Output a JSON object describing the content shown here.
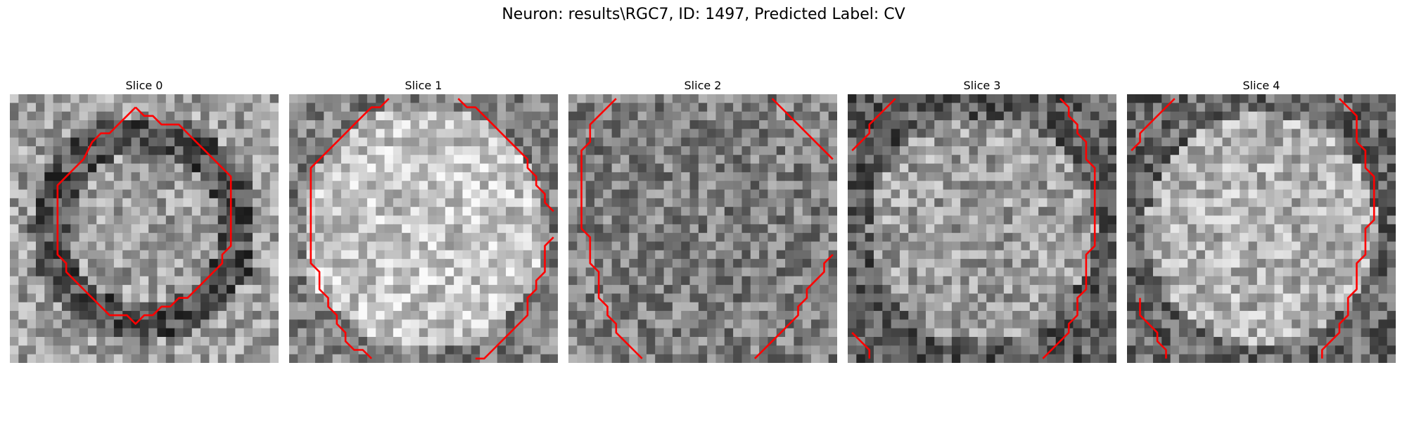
{
  "figure": {
    "title": "Neuron: results\\RGC7, ID: 1497, Predicted Label: CV"
  },
  "slices": [
    {
      "label": "Slice 0",
      "seed": 11,
      "profile": "ring",
      "contour": [
        [
          14,
          1
        ],
        [
          15,
          2
        ],
        [
          16,
          2
        ],
        [
          17,
          3
        ],
        [
          18,
          3
        ],
        [
          19,
          3
        ],
        [
          20,
          4
        ],
        [
          21,
          5
        ],
        [
          22,
          6
        ],
        [
          23,
          7
        ],
        [
          24,
          8
        ],
        [
          25,
          9
        ],
        [
          25,
          10
        ],
        [
          25,
          11
        ],
        [
          25,
          12
        ],
        [
          25,
          13
        ],
        [
          25,
          14
        ],
        [
          25,
          15
        ],
        [
          25,
          16
        ],
        [
          25,
          17
        ],
        [
          24,
          18
        ],
        [
          24,
          19
        ],
        [
          23,
          20
        ],
        [
          22,
          21
        ],
        [
          21,
          22
        ],
        [
          20,
          23
        ],
        [
          19,
          23
        ],
        [
          18,
          24
        ],
        [
          17,
          24
        ],
        [
          16,
          25
        ],
        [
          15,
          25
        ],
        [
          14,
          26
        ],
        [
          13,
          25
        ],
        [
          12,
          25
        ],
        [
          11,
          25
        ],
        [
          10,
          24
        ],
        [
          9,
          23
        ],
        [
          8,
          22
        ],
        [
          7,
          21
        ],
        [
          6,
          20
        ],
        [
          6,
          19
        ],
        [
          5,
          18
        ],
        [
          5,
          17
        ],
        [
          5,
          16
        ],
        [
          5,
          15
        ],
        [
          5,
          14
        ],
        [
          5,
          13
        ],
        [
          5,
          12
        ],
        [
          5,
          11
        ],
        [
          5,
          10
        ],
        [
          6,
          9
        ],
        [
          7,
          8
        ],
        [
          8,
          7
        ],
        [
          9,
          5
        ],
        [
          10,
          4
        ],
        [
          11,
          4
        ],
        [
          12,
          3
        ],
        [
          13,
          2
        ],
        [
          14,
          1
        ]
      ]
    },
    {
      "label": "Slice 1",
      "seed": 23,
      "profile": "bright",
      "contour": [
        [
          11,
          0
        ],
        [
          10,
          1
        ],
        [
          9,
          1
        ],
        [
          8,
          2
        ],
        [
          7,
          3
        ],
        [
          6,
          4
        ],
        [
          5,
          5
        ],
        [
          4,
          6
        ],
        [
          3,
          7
        ],
        [
          2,
          8
        ],
        [
          2,
          9
        ],
        [
          2,
          10
        ],
        [
          2,
          11
        ],
        [
          2,
          12
        ],
        [
          2,
          13
        ],
        [
          2,
          14
        ],
        [
          2,
          15
        ],
        [
          2,
          16
        ],
        [
          2,
          17
        ],
        [
          2,
          18
        ],
        [
          2,
          19
        ],
        [
          3,
          20
        ],
        [
          3,
          21
        ],
        [
          3,
          22
        ],
        [
          4,
          23
        ],
        [
          4,
          24
        ],
        [
          5,
          25
        ],
        [
          5,
          26
        ],
        [
          6,
          27
        ],
        [
          6,
          28
        ],
        [
          7,
          29
        ],
        [
          8,
          29
        ],
        [
          9,
          30
        ]
      ],
      "contour2": [
        [
          19,
          0
        ],
        [
          20,
          1
        ],
        [
          21,
          1
        ],
        [
          22,
          2
        ],
        [
          23,
          3
        ],
        [
          24,
          4
        ],
        [
          25,
          5
        ],
        [
          26,
          6
        ],
        [
          27,
          7
        ],
        [
          27,
          8
        ],
        [
          28,
          9
        ],
        [
          28,
          10
        ],
        [
          29,
          11
        ],
        [
          29,
          12
        ],
        [
          30,
          13
        ]
      ],
      "contour3": [
        [
          30,
          16
        ],
        [
          29,
          17
        ],
        [
          29,
          18
        ],
        [
          29,
          19
        ],
        [
          29,
          20
        ],
        [
          28,
          21
        ],
        [
          28,
          22
        ],
        [
          27,
          23
        ],
        [
          27,
          24
        ],
        [
          27,
          25
        ],
        [
          26,
          26
        ],
        [
          25,
          27
        ],
        [
          24,
          28
        ],
        [
          23,
          29
        ],
        [
          22,
          30
        ],
        [
          21,
          30
        ]
      ]
    },
    {
      "label": "Slice 2",
      "seed": 37,
      "profile": "noise",
      "contour": [
        [
          5,
          0
        ],
        [
          4,
          1
        ],
        [
          3,
          2
        ],
        [
          2,
          3
        ],
        [
          2,
          4
        ],
        [
          2,
          5
        ],
        [
          1,
          6
        ],
        [
          1,
          7
        ],
        [
          1,
          8
        ],
        [
          1,
          9
        ],
        [
          1,
          10
        ],
        [
          1,
          11
        ],
        [
          1,
          12
        ],
        [
          1,
          13
        ],
        [
          1,
          14
        ],
        [
          1,
          15
        ],
        [
          2,
          16
        ],
        [
          2,
          17
        ],
        [
          2,
          18
        ],
        [
          2,
          19
        ],
        [
          3,
          20
        ],
        [
          3,
          21
        ],
        [
          3,
          22
        ],
        [
          3,
          23
        ],
        [
          4,
          24
        ],
        [
          4,
          25
        ],
        [
          5,
          26
        ],
        [
          5,
          27
        ],
        [
          6,
          28
        ],
        [
          7,
          29
        ],
        [
          8,
          30
        ]
      ],
      "contour2": [
        [
          23,
          0
        ],
        [
          24,
          1
        ],
        [
          25,
          2
        ],
        [
          26,
          3
        ],
        [
          27,
          4
        ],
        [
          28,
          5
        ],
        [
          29,
          6
        ],
        [
          30,
          7
        ]
      ],
      "contour3": [
        [
          30,
          18
        ],
        [
          29,
          19
        ],
        [
          29,
          20
        ],
        [
          28,
          21
        ],
        [
          27,
          22
        ],
        [
          27,
          23
        ],
        [
          26,
          24
        ],
        [
          26,
          25
        ],
        [
          25,
          26
        ],
        [
          24,
          27
        ],
        [
          23,
          28
        ],
        [
          22,
          29
        ],
        [
          21,
          30
        ]
      ]
    },
    {
      "label": "Slice 3",
      "seed": 53,
      "profile": "rim-dark",
      "contour": [
        [
          5,
          0
        ],
        [
          4,
          1
        ],
        [
          3,
          2
        ],
        [
          2,
          3
        ],
        [
          2,
          4
        ],
        [
          1,
          5
        ],
        [
          0,
          6
        ]
      ],
      "contour2": [
        [
          24,
          0
        ],
        [
          25,
          1
        ],
        [
          25,
          2
        ],
        [
          26,
          3
        ],
        [
          26,
          4
        ],
        [
          27,
          5
        ],
        [
          27,
          6
        ],
        [
          27,
          7
        ],
        [
          28,
          8
        ],
        [
          28,
          9
        ],
        [
          28,
          10
        ],
        [
          28,
          11
        ],
        [
          28,
          12
        ],
        [
          28,
          13
        ],
        [
          28,
          14
        ],
        [
          28,
          15
        ],
        [
          28,
          16
        ],
        [
          28,
          17
        ],
        [
          27,
          18
        ],
        [
          27,
          19
        ],
        [
          27,
          20
        ],
        [
          27,
          21
        ],
        [
          27,
          22
        ],
        [
          26,
          23
        ],
        [
          26,
          24
        ],
        [
          26,
          25
        ],
        [
          25,
          26
        ],
        [
          25,
          27
        ],
        [
          24,
          28
        ],
        [
          23,
          29
        ],
        [
          22,
          30
        ]
      ],
      "contour3": [
        [
          0,
          27
        ],
        [
          1,
          28
        ],
        [
          2,
          29
        ],
        [
          2,
          30
        ]
      ]
    },
    {
      "label": "Slice 4",
      "seed": 71,
      "profile": "bright-soft",
      "contour": [
        [
          5,
          0
        ],
        [
          4,
          1
        ],
        [
          3,
          2
        ],
        [
          2,
          3
        ],
        [
          1,
          4
        ],
        [
          1,
          5
        ],
        [
          0,
          6
        ]
      ],
      "contour2": [
        [
          24,
          0
        ],
        [
          25,
          1
        ],
        [
          26,
          2
        ],
        [
          26,
          3
        ],
        [
          26,
          4
        ],
        [
          26,
          5
        ],
        [
          27,
          6
        ],
        [
          27,
          7
        ],
        [
          27,
          8
        ],
        [
          28,
          9
        ],
        [
          28,
          10
        ],
        [
          28,
          11
        ],
        [
          28,
          12
        ],
        [
          28,
          13
        ],
        [
          28,
          14
        ],
        [
          27,
          15
        ],
        [
          27,
          16
        ],
        [
          27,
          17
        ],
        [
          27,
          18
        ],
        [
          26,
          19
        ],
        [
          26,
          20
        ],
        [
          26,
          21
        ],
        [
          26,
          22
        ],
        [
          25,
          23
        ],
        [
          25,
          24
        ],
        [
          25,
          25
        ],
        [
          24,
          26
        ],
        [
          24,
          27
        ],
        [
          23,
          28
        ],
        [
          22,
          29
        ],
        [
          22,
          30
        ]
      ],
      "contour3": [
        [
          1,
          23
        ],
        [
          1,
          24
        ],
        [
          1,
          25
        ],
        [
          2,
          26
        ],
        [
          3,
          27
        ],
        [
          3,
          28
        ],
        [
          4,
          29
        ],
        [
          4,
          30
        ]
      ]
    }
  ],
  "colors": {
    "contour": "#ff0000"
  }
}
